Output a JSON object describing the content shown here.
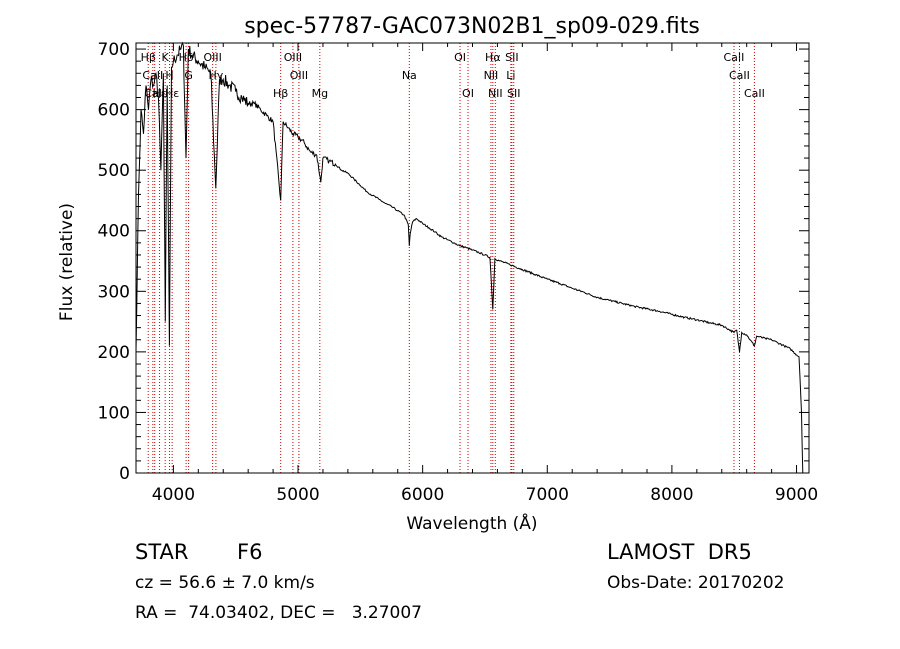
{
  "chart_data": {
    "type": "line",
    "title": "spec-57787-GAC073N02B1_sp09-029.fits",
    "xlabel": "Wavelength (Å)",
    "ylabel": "Flux (relative)",
    "xlim": [
      3700,
      9100
    ],
    "ylim": [
      0,
      710
    ],
    "x_ticks": [
      4000,
      5000,
      6000,
      7000,
      8000,
      9000
    ],
    "y_ticks": [
      0,
      100,
      200,
      300,
      400,
      500,
      600,
      700
    ],
    "grid": false,
    "line_color": "#000000",
    "marker_color": "#cc0000",
    "spectrum": {
      "name": "",
      "points": [
        [
          3700,
          200
        ],
        [
          3720,
          460
        ],
        [
          3740,
          600
        ],
        [
          3760,
          560
        ],
        [
          3780,
          640
        ],
        [
          3800,
          600
        ],
        [
          3820,
          650
        ],
        [
          3840,
          640
        ],
        [
          3860,
          660
        ],
        [
          3880,
          620
        ],
        [
          3900,
          500
        ],
        [
          3920,
          660
        ],
        [
          3935,
          250
        ],
        [
          3950,
          640
        ],
        [
          3968,
          210
        ],
        [
          3985,
          670
        ],
        [
          4000,
          680
        ],
        [
          4030,
          690
        ],
        [
          4060,
          700
        ],
        [
          4080,
          705
        ],
        [
          4101,
          520
        ],
        [
          4120,
          700
        ],
        [
          4150,
          690
        ],
        [
          4200,
          680
        ],
        [
          4250,
          670
        ],
        [
          4300,
          660
        ],
        [
          4340,
          470
        ],
        [
          4370,
          650
        ],
        [
          4400,
          650
        ],
        [
          4450,
          640
        ],
        [
          4500,
          630
        ],
        [
          4550,
          620
        ],
        [
          4600,
          610
        ],
        [
          4650,
          610
        ],
        [
          4700,
          600
        ],
        [
          4750,
          590
        ],
        [
          4800,
          580
        ],
        [
          4861,
          450
        ],
        [
          4880,
          580
        ],
        [
          4920,
          570
        ],
        [
          4960,
          560
        ],
        [
          5000,
          555
        ],
        [
          5050,
          545
        ],
        [
          5100,
          530
        ],
        [
          5150,
          525
        ],
        [
          5183,
          480
        ],
        [
          5200,
          520
        ],
        [
          5250,
          515
        ],
        [
          5300,
          510
        ],
        [
          5350,
          500
        ],
        [
          5400,
          495
        ],
        [
          5450,
          485
        ],
        [
          5500,
          475
        ],
        [
          5550,
          465
        ],
        [
          5600,
          458
        ],
        [
          5650,
          452
        ],
        [
          5700,
          445
        ],
        [
          5750,
          440
        ],
        [
          5800,
          433
        ],
        [
          5850,
          426
        ],
        [
          5885,
          410
        ],
        [
          5893,
          375
        ],
        [
          5900,
          395
        ],
        [
          5920,
          415
        ],
        [
          5950,
          420
        ],
        [
          6000,
          412
        ],
        [
          6050,
          405
        ],
        [
          6100,
          398
        ],
        [
          6150,
          390
        ],
        [
          6200,
          385
        ],
        [
          6250,
          380
        ],
        [
          6300,
          375
        ],
        [
          6350,
          372
        ],
        [
          6400,
          368
        ],
        [
          6450,
          364
        ],
        [
          6500,
          360
        ],
        [
          6540,
          356
        ],
        [
          6563,
          270
        ],
        [
          6580,
          354
        ],
        [
          6620,
          350
        ],
        [
          6700,
          344
        ],
        [
          6800,
          336
        ],
        [
          6900,
          328
        ],
        [
          7000,
          320
        ],
        [
          7100,
          313
        ],
        [
          7200,
          305
        ],
        [
          7300,
          298
        ],
        [
          7400,
          290
        ],
        [
          7500,
          285
        ],
        [
          7600,
          280
        ],
        [
          7700,
          275
        ],
        [
          7800,
          271
        ],
        [
          7900,
          267
        ],
        [
          8000,
          262
        ],
        [
          8100,
          257
        ],
        [
          8200,
          253
        ],
        [
          8300,
          248
        ],
        [
          8400,
          244
        ],
        [
          8498,
          232
        ],
        [
          8520,
          236
        ],
        [
          8542,
          200
        ],
        [
          8560,
          232
        ],
        [
          8600,
          228
        ],
        [
          8662,
          210
        ],
        [
          8680,
          226
        ],
        [
          8750,
          222
        ],
        [
          8800,
          220
        ],
        [
          8850,
          215
        ],
        [
          8900,
          210
        ],
        [
          8950,
          205
        ],
        [
          9000,
          195
        ],
        [
          9020,
          192
        ],
        [
          9040,
          100
        ],
        [
          9050,
          0
        ]
      ]
    },
    "lines": [
      {
        "name": "Hβ",
        "wave": 3798,
        "row": 0
      },
      {
        "name": "CaII",
        "wave": 3835,
        "row": 1
      },
      {
        "name": "CaII",
        "wave": 3850,
        "row": 2
      },
      {
        "name": "Hε",
        "wave": 3889,
        "row": 2
      },
      {
        "name": "K",
        "wave": 3934,
        "row": 0
      },
      {
        "name": "H",
        "wave": 3969,
        "row": 1
      },
      {
        "name": "Hε",
        "wave": 3990,
        "row": 2
      },
      {
        "name": "Hδ",
        "wave": 4102,
        "row": 0
      },
      {
        "name": "G",
        "wave": 4122,
        "row": 1
      },
      {
        "name": "OIII",
        "wave": 4315,
        "row": 0
      },
      {
        "name": "Hγ",
        "wave": 4341,
        "row": 1
      },
      {
        "name": "Hβ",
        "wave": 4861,
        "row": 2
      },
      {
        "name": "OIII",
        "wave": 4959,
        "row": 0
      },
      {
        "name": "OIII",
        "wave": 5007,
        "row": 1
      },
      {
        "name": "Mg",
        "wave": 5175,
        "row": 2
      },
      {
        "name": "Na",
        "wave": 5893,
        "row": 1
      },
      {
        "name": "OI",
        "wave": 6300,
        "row": 0
      },
      {
        "name": "OI",
        "wave": 6364,
        "row": 2
      },
      {
        "name": "Hα",
        "wave": 6563,
        "row": 0
      },
      {
        "name": "NII",
        "wave": 6548,
        "row": 1
      },
      {
        "name": "NII",
        "wave": 6583,
        "row": 2
      },
      {
        "name": "SII",
        "wave": 6716,
        "row": 0
      },
      {
        "name": "Li",
        "wave": 6708,
        "row": 1
      },
      {
        "name": "SII",
        "wave": 6731,
        "row": 2
      },
      {
        "name": "CaII",
        "wave": 8498,
        "row": 0
      },
      {
        "name": "CaII",
        "wave": 8542,
        "row": 1
      },
      {
        "name": "CaII",
        "wave": 8662,
        "row": 2
      }
    ]
  },
  "info": {
    "object_class": "STAR",
    "subclass": "F6",
    "redshift": "cz = 56.6 ± 7.0 km/s",
    "coords": "RA =  74.03402, DEC =   3.27007",
    "survey": "LAMOST  DR5",
    "obs_date": "Obs-Date: 20170202"
  }
}
